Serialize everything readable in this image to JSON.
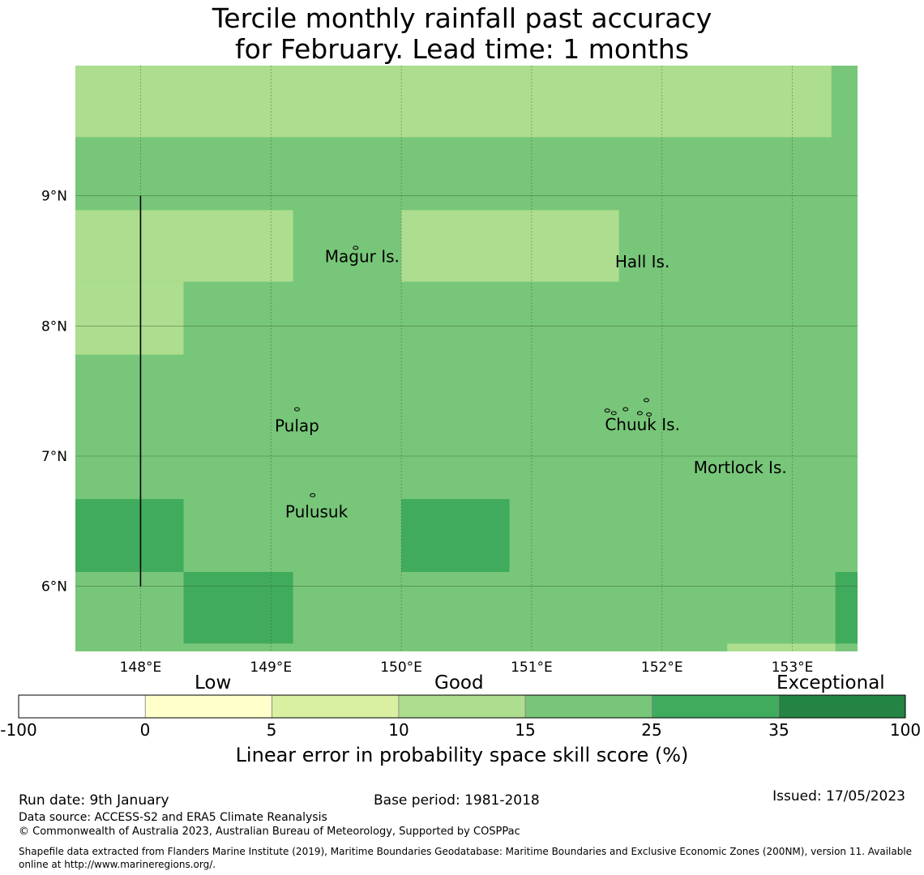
{
  "title": {
    "line1": "Tercile monthly rainfall past accuracy",
    "line2": "for February. Lead time: 1 months"
  },
  "map": {
    "lon_labels": [
      "148°E",
      "149°E",
      "150°E",
      "151°E",
      "152°E",
      "153°E"
    ],
    "lat_labels": [
      "9°N",
      "8°N",
      "7°N",
      "6°N"
    ],
    "lon_values": [
      148,
      149,
      150,
      151,
      152,
      153
    ],
    "lat_values": [
      9,
      8,
      7,
      6
    ],
    "places": [
      {
        "name": "Magur Is.",
        "lon": 149.7,
        "lat": 8.54
      },
      {
        "name": "Hall Is.",
        "lon": 151.85,
        "lat": 8.5
      },
      {
        "name": "Pulap",
        "lon": 149.2,
        "lat": 7.24
      },
      {
        "name": "Chuuk Is.",
        "lon": 151.85,
        "lat": 7.25
      },
      {
        "name": "Mortlock Is.",
        "lon": 152.6,
        "lat": 6.92
      },
      {
        "name": "Pulusuk",
        "lon": 149.35,
        "lat": 6.58
      }
    ],
    "grid_cells": [
      {
        "lon0": 147.5,
        "lon1": 153.3,
        "lat0": 9.45,
        "lat1": 10.0,
        "category": "10-15"
      },
      {
        "lon0": 147.5,
        "lon1": 149.17,
        "lat0": 8.34,
        "lat1": 8.89,
        "category": "10-15"
      },
      {
        "lon0": 147.5,
        "lon1": 148.33,
        "lat0": 7.78,
        "lat1": 8.34,
        "category": "10-15"
      },
      {
        "lon0": 150.0,
        "lon1": 151.67,
        "lat0": 8.34,
        "lat1": 8.89,
        "category": "10-15"
      },
      {
        "lon0": 147.5,
        "lon1": 148.33,
        "lat0": 6.11,
        "lat1": 6.67,
        "category": "25-35"
      },
      {
        "lon0": 150.0,
        "lon1": 150.83,
        "lat0": 6.11,
        "lat1": 6.67,
        "category": "25-35"
      },
      {
        "lon0": 148.33,
        "lon1": 149.17,
        "lat0": 5.56,
        "lat1": 6.11,
        "category": "25-35"
      },
      {
        "lon0": 153.33,
        "lon1": 153.5,
        "lat0": 5.56,
        "lat1": 6.11,
        "category": "25-35"
      },
      {
        "lon0": 152.5,
        "lon1": 153.33,
        "lat0": 5.5,
        "lat1": 5.56,
        "category": "10-15"
      }
    ],
    "default_category": "15-25"
  },
  "colorbar": {
    "categories": [
      "Low",
      "Good",
      "Exceptional"
    ],
    "ticks": [
      "-100",
      "0",
      "5",
      "10",
      "15",
      "25",
      "35",
      "100"
    ],
    "segments": [
      {
        "range": "-100-0",
        "color": "#ffffff"
      },
      {
        "range": "0-5",
        "color": "#ffffcc"
      },
      {
        "range": "5-10",
        "color": "#d9f0a3"
      },
      {
        "range": "10-15",
        "color": "#addd8e"
      },
      {
        "range": "15-25",
        "color": "#78c679"
      },
      {
        "range": "25-35",
        "color": "#41ab5d"
      },
      {
        "range": "35-100",
        "color": "#238443"
      }
    ],
    "label": "Linear error in probability space skill score (%)"
  },
  "footer": {
    "run_date": "Run date: 9th January",
    "base_period": "Base period: 1981-2018",
    "issued": "Issued: 17/05/2023",
    "data_source": "Data source: ACCESS-S2 and ERA5 Climate Reanalysis",
    "copyright": "© Commonwealth of Australia 2023, Australian Bureau of Meteorology, Supported by COSPPac",
    "shapefile": "Shapefile data extracted from Flanders Marine Institute (2019), Maritime Boundaries Geodatabase: Maritime Boundaries and Exclusive Economic Zones (200NM), version 11. Available online at http://www.marineregions.org/."
  }
}
